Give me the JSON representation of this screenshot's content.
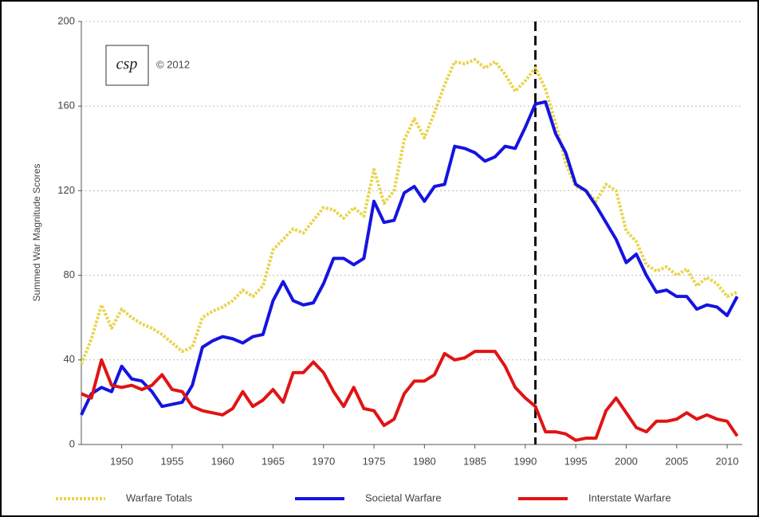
{
  "chart_data": {
    "type": "line",
    "y_label": "Summed War Magnitude Scores",
    "logo": "csp",
    "annotation": "© 2012",
    "x": [
      1946,
      1947,
      1948,
      1949,
      1950,
      1951,
      1952,
      1953,
      1954,
      1955,
      1956,
      1957,
      1958,
      1959,
      1960,
      1961,
      1962,
      1963,
      1964,
      1965,
      1966,
      1967,
      1968,
      1969,
      1970,
      1971,
      1972,
      1973,
      1974,
      1975,
      1976,
      1977,
      1978,
      1979,
      1980,
      1981,
      1982,
      1983,
      1984,
      1985,
      1986,
      1987,
      1988,
      1989,
      1990,
      1991,
      1992,
      1993,
      1994,
      1995,
      1996,
      1997,
      1998,
      1999,
      2000,
      2001,
      2002,
      2003,
      2004,
      2005,
      2006,
      2007,
      2008,
      2009,
      2010,
      2011
    ],
    "series": [
      {
        "name": "Warfare Totals",
        "color": "#e8d44a",
        "dotted": true,
        "values": [
          38,
          50,
          66,
          55,
          64,
          60,
          57,
          55,
          52,
          48,
          44,
          46,
          60,
          63,
          65,
          68,
          73,
          70,
          75,
          92,
          97,
          102,
          100,
          106,
          112,
          111,
          107,
          112,
          108,
          130,
          114,
          120,
          144,
          154,
          145,
          157,
          170,
          181,
          180,
          182,
          178,
          181,
          175,
          167,
          172,
          178,
          168,
          152,
          133,
          122,
          120,
          115,
          123,
          120,
          101,
          96,
          85,
          82,
          84,
          80,
          83,
          75,
          79,
          76,
          70,
          72
        ]
      },
      {
        "name": "Societal Warfare",
        "color": "#1414e0",
        "dotted": false,
        "values": [
          14,
          24,
          27,
          25,
          37,
          31,
          30,
          25,
          18,
          19,
          20,
          28,
          46,
          49,
          51,
          50,
          48,
          51,
          52,
          68,
          77,
          68,
          66,
          67,
          76,
          88,
          88,
          85,
          88,
          115,
          105,
          106,
          119,
          122,
          115,
          122,
          123,
          141,
          140,
          138,
          134,
          136,
          141,
          140,
          150,
          161,
          162,
          147,
          138,
          123,
          120,
          113,
          105,
          97,
          86,
          90,
          80,
          72,
          73,
          70,
          70,
          64,
          66,
          65,
          61,
          70
        ]
      },
      {
        "name": "Interstate Warfare",
        "color": "#e01414",
        "dotted": false,
        "values": [
          24,
          22,
          40,
          28,
          27,
          28,
          26,
          28,
          33,
          26,
          25,
          18,
          16,
          15,
          14,
          17,
          25,
          18,
          21,
          26,
          20,
          34,
          34,
          39,
          34,
          25,
          18,
          27,
          17,
          16,
          9,
          12,
          24,
          30,
          30,
          33,
          43,
          40,
          41,
          44,
          44,
          44,
          37,
          27,
          22,
          18,
          6,
          6,
          5,
          2,
          3,
          3,
          16,
          22,
          15,
          8,
          6,
          11,
          11,
          12,
          15,
          12,
          14,
          12,
          11,
          4
        ]
      }
    ],
    "vline": 1991,
    "xlim": [
      1946,
      2011.5
    ],
    "xticks": [
      1950,
      1955,
      1960,
      1965,
      1970,
      1975,
      1980,
      1985,
      1990,
      1995,
      2000,
      2005,
      2010
    ],
    "ylim": [
      0,
      200
    ],
    "yticks": [
      0,
      40,
      80,
      120,
      160,
      200
    ],
    "grid": true
  }
}
